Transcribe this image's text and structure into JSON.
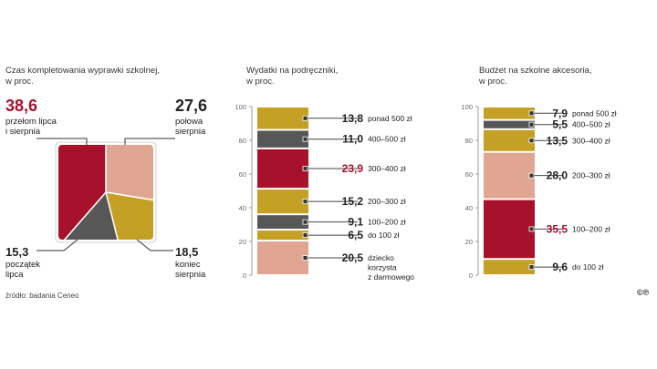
{
  "charts": {
    "pie": {
      "title_line1": "Czas kompletowania wyprawki szkolnej,",
      "title_line2": "w proc."
    },
    "books": {
      "title_line1": "Wydatki na podręczniki,",
      "title_line2": "w proc."
    },
    "accessories": {
      "title_line1": "Budżet na szkolne akcesoria,",
      "title_line2": "w proc."
    }
  },
  "source": "źródło: badania Ceneo",
  "logo": "©℗",
  "colors": {
    "red": "#a8112c",
    "gold": "#c4a024",
    "dark": "#575757",
    "pink": "#e0a692",
    "axis": "#999999"
  },
  "chart_data": [
    {
      "type": "pie",
      "title": "Czas kompletowania wyprawki szkolnej, w proc.",
      "slices": [
        {
          "value": "38,6",
          "label": "przełom lipca\ni sierpnia",
          "color": "red"
        },
        {
          "value": "27,6",
          "label": "połowa\nsierpnia",
          "color": "pink"
        },
        {
          "value": "18,5",
          "label": "koniec\nsierpnia",
          "color": "gold"
        },
        {
          "value": "15,3",
          "label": "początek\nlipca",
          "color": "dark"
        }
      ]
    },
    {
      "type": "bar",
      "title": "Wydatki na podręczniki, w proc.",
      "ylim": [
        0,
        100
      ],
      "yticks": [
        "0",
        "20",
        "40",
        "60",
        "80",
        "100"
      ],
      "segments": [
        {
          "value": "20,5",
          "label": "dziecko\nkorzysta\nz darmowego",
          "color": "pink",
          "highlight": false
        },
        {
          "value": "6,5",
          "label": "do 100 zł",
          "color": "gold",
          "highlight": false
        },
        {
          "value": "9,1",
          "label": "100–200 zł",
          "color": "dark",
          "highlight": false
        },
        {
          "value": "15,2",
          "label": "200–300 zł",
          "color": "gold",
          "highlight": false
        },
        {
          "value": "23,9",
          "label": "300–400 zł",
          "color": "red",
          "highlight": true
        },
        {
          "value": "11,0",
          "label": "400–500 zł",
          "color": "dark",
          "highlight": false
        },
        {
          "value": "13,8",
          "label": "ponad 500 zł",
          "color": "gold",
          "highlight": false
        }
      ]
    },
    {
      "type": "bar",
      "title": "Budżet na szkolne akcesoria, w proc.",
      "ylim": [
        0,
        100
      ],
      "yticks": [
        "0",
        "20",
        "40",
        "60",
        "80",
        "100"
      ],
      "segments": [
        {
          "value": "9,6",
          "label": "do 100 zł",
          "color": "gold",
          "highlight": false
        },
        {
          "value": "35,5",
          "label": "100–200 zł",
          "color": "red",
          "highlight": true
        },
        {
          "value": "28,0",
          "label": "200–300 zł",
          "color": "pink",
          "highlight": false
        },
        {
          "value": "13,5",
          "label": "300–400 zł",
          "color": "gold",
          "highlight": false
        },
        {
          "value": "5,5",
          "label": "400–500 zł",
          "color": "dark",
          "highlight": false
        },
        {
          "value": "7,9",
          "label": "ponad 500 zł",
          "color": "gold",
          "highlight": false
        }
      ]
    }
  ]
}
